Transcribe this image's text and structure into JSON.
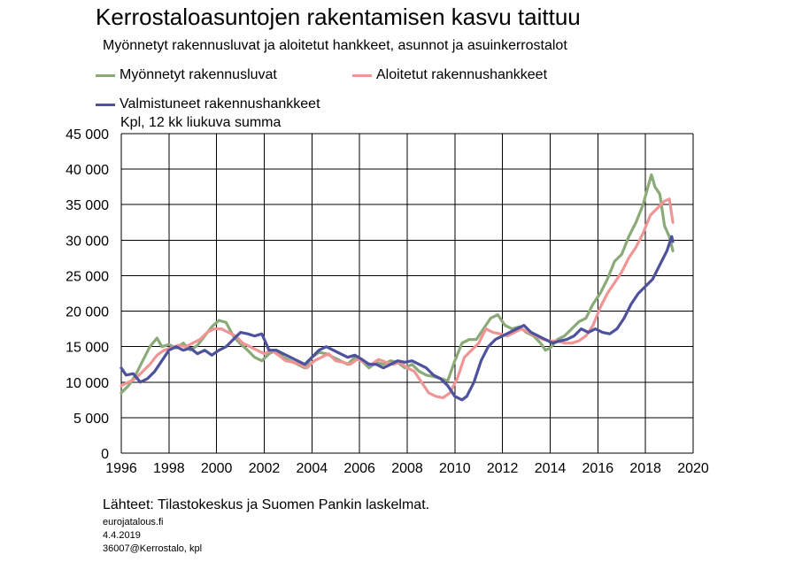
{
  "header": {
    "title": "Kerrostaloasuntojen rakentamisen kasvu taittuu",
    "subtitle": "Myönnetyt rakennusluvat ja aloitetut hankkeet, asunnot ja asuinkerrostalot"
  },
  "footer": {
    "source": "Lähteet: Tilastokeskus ja Suomen Pankin laskelmat.",
    "site": "eurojatalous.fi",
    "date": "4.4.2019",
    "code": "36007@Kerrostalo, kpl"
  },
  "colors": {
    "green": "#8aaa78",
    "pink": "#ef9595",
    "blue": "#4e519c"
  },
  "chart_data": {
    "type": "line",
    "title": "Kerrostaloasuntojen rakentamisen kasvu taittuu",
    "subtitle": "Myönnetyt rakennusluvat ja aloitetut hankkeet, asunnot ja asuinkerrostalot",
    "ylabel": "Kpl, 12 kk liukuva summa",
    "xlabel": "",
    "xlim": [
      1996,
      2020
    ],
    "ylim": [
      0,
      45000
    ],
    "xticks": [
      1996,
      1998,
      2000,
      2002,
      2004,
      2006,
      2008,
      2010,
      2012,
      2014,
      2016,
      2018,
      2020
    ],
    "xtick_labels": [
      "1996",
      "1998",
      "2000",
      "2002",
      "2004",
      "2006",
      "2008",
      "2010",
      "2012",
      "2014",
      "2016",
      "2018",
      "2020"
    ],
    "yticks": [
      0,
      5000,
      10000,
      15000,
      20000,
      25000,
      30000,
      35000,
      40000,
      45000
    ],
    "ytick_labels": [
      "0",
      "5 000",
      "10 000",
      "15 000",
      "20 000",
      "25 000",
      "30 000",
      "35 000",
      "40 000",
      "45 000"
    ],
    "grid": true,
    "legend_position": "top-left",
    "series": [
      {
        "name": "Myönnetyt rakennusluvat",
        "color": "#8aaa78",
        "points": [
          [
            1996.0,
            8500
          ],
          [
            1996.3,
            9500
          ],
          [
            1996.6,
            11000
          ],
          [
            1996.9,
            13000
          ],
          [
            1997.2,
            15000
          ],
          [
            1997.5,
            16200
          ],
          [
            1997.7,
            15000
          ],
          [
            1998.0,
            15300
          ],
          [
            1998.3,
            14800
          ],
          [
            1998.6,
            15500
          ],
          [
            1998.9,
            14500
          ],
          [
            1999.2,
            15200
          ],
          [
            1999.5,
            16500
          ],
          [
            1999.8,
            17800
          ],
          [
            2000.1,
            18700
          ],
          [
            2000.4,
            18400
          ],
          [
            2000.7,
            16500
          ],
          [
            2001.0,
            15400
          ],
          [
            2001.3,
            14500
          ],
          [
            2001.6,
            13500
          ],
          [
            2001.9,
            13000
          ],
          [
            2002.2,
            14000
          ],
          [
            2002.5,
            14500
          ],
          [
            2002.8,
            13500
          ],
          [
            2003.1,
            13000
          ],
          [
            2003.4,
            12500
          ],
          [
            2003.7,
            12000
          ],
          [
            2004.0,
            13500
          ],
          [
            2004.3,
            14200
          ],
          [
            2004.6,
            14000
          ],
          [
            2004.9,
            13500
          ],
          [
            2005.2,
            13000
          ],
          [
            2005.5,
            12500
          ],
          [
            2005.8,
            13500
          ],
          [
            2006.1,
            13000
          ],
          [
            2006.4,
            12000
          ],
          [
            2006.7,
            12800
          ],
          [
            2007.0,
            12500
          ],
          [
            2007.3,
            13000
          ],
          [
            2007.6,
            12800
          ],
          [
            2007.9,
            12000
          ],
          [
            2008.2,
            12500
          ],
          [
            2008.5,
            11500
          ],
          [
            2008.8,
            11000
          ],
          [
            2009.1,
            10800
          ],
          [
            2009.4,
            10500
          ],
          [
            2009.7,
            10200
          ],
          [
            2010.0,
            13000
          ],
          [
            2010.3,
            15500
          ],
          [
            2010.6,
            16000
          ],
          [
            2010.9,
            16000
          ],
          [
            2011.2,
            17500
          ],
          [
            2011.5,
            19000
          ],
          [
            2011.8,
            19500
          ],
          [
            2012.1,
            18000
          ],
          [
            2012.4,
            17500
          ],
          [
            2012.7,
            17800
          ],
          [
            2013.0,
            17000
          ],
          [
            2013.3,
            16500
          ],
          [
            2013.6,
            15500
          ],
          [
            2013.8,
            14500
          ],
          [
            2014.0,
            14800
          ],
          [
            2014.3,
            16000
          ],
          [
            2014.6,
            16500
          ],
          [
            2014.9,
            17500
          ],
          [
            2015.2,
            18500
          ],
          [
            2015.5,
            19000
          ],
          [
            2015.8,
            21000
          ],
          [
            2016.1,
            22500
          ],
          [
            2016.4,
            24500
          ],
          [
            2016.7,
            27000
          ],
          [
            2017.0,
            28000
          ],
          [
            2017.3,
            30500
          ],
          [
            2017.6,
            32500
          ],
          [
            2017.9,
            35000
          ],
          [
            2018.1,
            37500
          ],
          [
            2018.25,
            39200
          ],
          [
            2018.4,
            37500
          ],
          [
            2018.6,
            36500
          ],
          [
            2018.8,
            32000
          ],
          [
            2019.0,
            30500
          ],
          [
            2019.15,
            28500
          ]
        ]
      },
      {
        "name": "Aloitetut rakennushankkeet",
        "color": "#ef9595",
        "points": [
          [
            1996.0,
            9500
          ],
          [
            1996.3,
            10000
          ],
          [
            1996.6,
            10500
          ],
          [
            1996.9,
            11500
          ],
          [
            1997.2,
            12500
          ],
          [
            1997.5,
            13800
          ],
          [
            1997.8,
            14500
          ],
          [
            1998.1,
            14800
          ],
          [
            1998.4,
            15200
          ],
          [
            1998.7,
            15000
          ],
          [
            1999.0,
            15500
          ],
          [
            1999.3,
            16000
          ],
          [
            1999.6,
            17000
          ],
          [
            1999.9,
            17500
          ],
          [
            2000.2,
            17500
          ],
          [
            2000.5,
            17000
          ],
          [
            2000.8,
            16500
          ],
          [
            2001.1,
            15500
          ],
          [
            2001.4,
            15000
          ],
          [
            2001.7,
            14500
          ],
          [
            2002.0,
            14000
          ],
          [
            2002.3,
            14500
          ],
          [
            2002.6,
            13800
          ],
          [
            2002.9,
            13000
          ],
          [
            2003.2,
            12800
          ],
          [
            2003.5,
            12500
          ],
          [
            2003.8,
            12000
          ],
          [
            2004.1,
            13000
          ],
          [
            2004.4,
            13500
          ],
          [
            2004.7,
            14000
          ],
          [
            2005.0,
            13000
          ],
          [
            2005.3,
            12800
          ],
          [
            2005.6,
            12500
          ],
          [
            2005.9,
            13200
          ],
          [
            2006.2,
            12800
          ],
          [
            2006.5,
            12500
          ],
          [
            2006.8,
            13200
          ],
          [
            2007.1,
            12800
          ],
          [
            2007.4,
            12500
          ],
          [
            2007.7,
            12800
          ],
          [
            2008.0,
            12000
          ],
          [
            2008.3,
            11500
          ],
          [
            2008.6,
            10000
          ],
          [
            2008.9,
            8500
          ],
          [
            2009.2,
            8000
          ],
          [
            2009.5,
            7800
          ],
          [
            2009.8,
            8500
          ],
          [
            2010.1,
            10500
          ],
          [
            2010.4,
            13500
          ],
          [
            2010.7,
            14500
          ],
          [
            2011.0,
            15500
          ],
          [
            2011.3,
            17500
          ],
          [
            2011.6,
            17000
          ],
          [
            2011.9,
            16800
          ],
          [
            2012.2,
            16500
          ],
          [
            2012.5,
            17000
          ],
          [
            2012.8,
            17500
          ],
          [
            2013.1,
            17000
          ],
          [
            2013.4,
            16500
          ],
          [
            2013.7,
            16000
          ],
          [
            2014.0,
            15800
          ],
          [
            2014.3,
            15800
          ],
          [
            2014.6,
            15500
          ],
          [
            2014.9,
            15500
          ],
          [
            2015.2,
            15800
          ],
          [
            2015.5,
            16500
          ],
          [
            2015.8,
            18000
          ],
          [
            2016.1,
            20500
          ],
          [
            2016.4,
            22500
          ],
          [
            2016.7,
            24000
          ],
          [
            2017.0,
            25500
          ],
          [
            2017.3,
            27500
          ],
          [
            2017.6,
            29000
          ],
          [
            2017.9,
            31000
          ],
          [
            2018.2,
            33500
          ],
          [
            2018.5,
            34500
          ],
          [
            2018.8,
            35500
          ],
          [
            2019.0,
            35800
          ],
          [
            2019.15,
            32500
          ]
        ]
      },
      {
        "name": "Valmistuneet rakennushankkeet",
        "color": "#4e519c",
        "points": [
          [
            1996.0,
            12000
          ],
          [
            1996.2,
            11000
          ],
          [
            1996.5,
            11200
          ],
          [
            1996.8,
            10000
          ],
          [
            1997.1,
            10500
          ],
          [
            1997.4,
            11500
          ],
          [
            1997.7,
            13000
          ],
          [
            1998.0,
            14500
          ],
          [
            1998.3,
            15000
          ],
          [
            1998.6,
            14500
          ],
          [
            1998.9,
            14800
          ],
          [
            1999.2,
            14000
          ],
          [
            1999.5,
            14500
          ],
          [
            1999.8,
            13800
          ],
          [
            2000.1,
            14500
          ],
          [
            2000.4,
            15000
          ],
          [
            2000.7,
            16000
          ],
          [
            2001.0,
            17000
          ],
          [
            2001.3,
            16800
          ],
          [
            2001.6,
            16500
          ],
          [
            2001.9,
            16800
          ],
          [
            2002.2,
            14500
          ],
          [
            2002.5,
            14500
          ],
          [
            2002.8,
            14000
          ],
          [
            2003.1,
            13500
          ],
          [
            2003.4,
            13000
          ],
          [
            2003.7,
            12500
          ],
          [
            2004.0,
            13500
          ],
          [
            2004.3,
            14500
          ],
          [
            2004.6,
            15000
          ],
          [
            2004.9,
            14500
          ],
          [
            2005.2,
            14000
          ],
          [
            2005.5,
            13500
          ],
          [
            2005.8,
            13800
          ],
          [
            2006.1,
            13200
          ],
          [
            2006.4,
            12500
          ],
          [
            2006.7,
            12500
          ],
          [
            2007.0,
            12000
          ],
          [
            2007.3,
            12500
          ],
          [
            2007.6,
            13000
          ],
          [
            2007.9,
            12800
          ],
          [
            2008.2,
            13000
          ],
          [
            2008.5,
            12500
          ],
          [
            2008.8,
            12000
          ],
          [
            2009.1,
            11000
          ],
          [
            2009.4,
            10500
          ],
          [
            2009.7,
            9500
          ],
          [
            2010.0,
            8000
          ],
          [
            2010.3,
            7500
          ],
          [
            2010.5,
            8000
          ],
          [
            2010.8,
            10000
          ],
          [
            2011.1,
            13000
          ],
          [
            2011.4,
            15000
          ],
          [
            2011.7,
            16000
          ],
          [
            2012.0,
            16500
          ],
          [
            2012.3,
            17000
          ],
          [
            2012.6,
            17500
          ],
          [
            2012.9,
            18000
          ],
          [
            2013.2,
            17000
          ],
          [
            2013.5,
            16500
          ],
          [
            2013.8,
            16000
          ],
          [
            2014.1,
            15500
          ],
          [
            2014.4,
            15800
          ],
          [
            2014.7,
            16000
          ],
          [
            2015.0,
            16500
          ],
          [
            2015.3,
            17500
          ],
          [
            2015.6,
            17000
          ],
          [
            2015.9,
            17500
          ],
          [
            2016.2,
            17000
          ],
          [
            2016.5,
            16800
          ],
          [
            2016.8,
            17500
          ],
          [
            2017.1,
            19000
          ],
          [
            2017.4,
            21000
          ],
          [
            2017.7,
            22500
          ],
          [
            2018.0,
            23500
          ],
          [
            2018.3,
            24500
          ],
          [
            2018.6,
            26500
          ],
          [
            2018.9,
            28500
          ],
          [
            2019.1,
            30500
          ],
          [
            2019.15,
            29800
          ]
        ]
      }
    ]
  }
}
